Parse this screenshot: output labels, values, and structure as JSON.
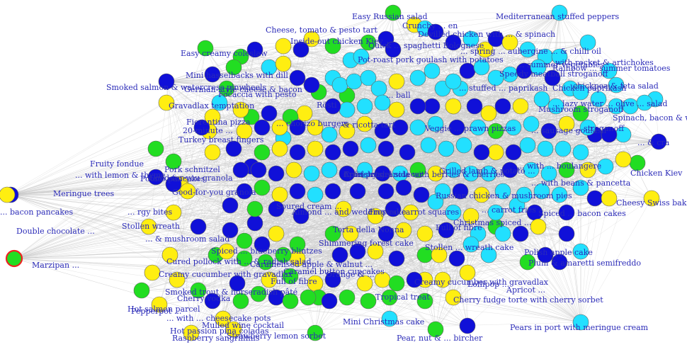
{
  "palette": {
    "dark_blue": "#1010d8",
    "cyan": "#22e0ff",
    "green": "#22dd22",
    "yellow": "#ffee11",
    "highlight_stroke": "#ee2222",
    "label": "#2b2bb8",
    "edge": "#bdbdbd"
  },
  "nodes": [
    {
      "label": "Easy Russian salad",
      "color": "green"
    },
    {
      "label": "Mediterranean stuffed peppers",
      "color": "cyan"
    },
    {
      "label": "Cheese, tomato & pesto tart",
      "color": "yellow"
    },
    {
      "label": "Crunchy ...",
      "color": "yellow"
    },
    {
      "label": "Inside-out chicken Kiev",
      "color": "dark_blue"
    },
    {
      "label": "Easy creamy coleslaw",
      "color": "green"
    },
    {
      "label": "Pot-roast pork goulash with potatoes",
      "color": "cyan"
    },
    {
      "label": "Mini hasselbacks with dill",
      "color": "dark_blue"
    },
    {
      "label": "Speedy meatball stroganoff",
      "color": "cyan"
    },
    {
      "label": "Smoked salmon & watercress pinwheels",
      "color": "dark_blue"
    },
    {
      "label": "German-style cheese & bacon",
      "color": "green"
    },
    {
      "label": "Focaccia with pesto",
      "color": "green"
    },
    {
      "label": "Gravadlax temptation",
      "color": "yellow"
    },
    {
      "label": "Rösti",
      "color": "green"
    },
    {
      "label": "Chorizo burgers",
      "color": "yellow"
    },
    {
      "label": "Chicken Kiev",
      "color": "green"
    },
    {
      "label": "Spinach, bacon & ...",
      "color": "cyan"
    },
    {
      "label": "Fiorentina pizza",
      "color": "yellow"
    },
    {
      "label": "20-minute ...",
      "color": "dark_blue"
    },
    {
      "label": "Turkey breast fingers",
      "color": "yellow"
    },
    {
      "label": "Fruity fondue",
      "color": "green"
    },
    {
      "label": "Pork schnitzel",
      "color": "green"
    },
    {
      "label": "Potato pancakes",
      "color": "yellow"
    },
    {
      "label": "Good-for-you granola",
      "color": "dark_blue"
    },
    {
      "label": "Meringue trees",
      "color": "dark_blue"
    },
    {
      "label": "Scandi smoked ...",
      "color": "dark_blue"
    },
    {
      "label": "Russian chicken & mushroom pies",
      "color": "dark_blue"
    },
    {
      "label": "Grilled lamb & potato ...",
      "color": "yellow"
    },
    {
      "label": "Cheesy Swiss bake",
      "color": "cyan"
    },
    {
      "label": "Spiced ... bacon cakes",
      "color": "cyan"
    },
    {
      "label": "Soured cream ...",
      "color": "yellow"
    },
    {
      "label": "Almond ... wedding cake",
      "color": "yellow"
    },
    {
      "label": "Torta della Nonna",
      "color": "dark_blue"
    },
    {
      "label": "Frosted carrot squares",
      "color": "yellow"
    },
    {
      "label": "Stollen wreath",
      "color": "dark_blue"
    },
    {
      "label": "Double chocolate ...",
      "color": "dark_blue"
    },
    {
      "label": "Full of fibre",
      "color": "dark_blue"
    },
    {
      "label": "Full of fibre",
      "color": "green",
      "highlight": true
    },
    {
      "label": "Shimmering forest cake",
      "color": "yellow"
    },
    {
      "label": "Christmas spiced ...",
      "color": "cyan"
    },
    {
      "label": "Cured pollock with ... & radish salad",
      "color": "cyan"
    },
    {
      "label": "Creamy cucumber with gravadlax",
      "color": "cyan"
    },
    {
      "label": "Caramelised apple & walnut ...",
      "color": "yellow"
    },
    {
      "label": "Caramel button cupcakes",
      "color": "green"
    },
    {
      "label": "Marzipan ...",
      "color": "yellow"
    },
    {
      "label": "Plum & amaretti semifreddo",
      "color": "yellow"
    },
    {
      "label": "Orange & ...",
      "color": "yellow"
    },
    {
      "label": "Lollipop ...",
      "color": "yellow"
    },
    {
      "label": "Hot salmon parcel",
      "color": "yellow"
    },
    {
      "label": "Smoked trout & horseradish pâté",
      "color": "dark_blue"
    },
    {
      "label": "Cherry vodka",
      "color": "green"
    },
    {
      "label": "Tropical treat",
      "color": "green"
    },
    {
      "label": "Mini Christmas cake",
      "color": "yellow"
    },
    {
      "label": "Cherry fudge torte with cherry sorbet",
      "color": "green"
    },
    {
      "label": "Pears in port with meringue cream",
      "color": "yellow"
    },
    {
      "label": "Hot passion pina coladas",
      "color": "yellow"
    },
    {
      "label": "Pear, nut & ... bircher",
      "color": "yellow"
    },
    {
      "label": "Mulled wine cocktail",
      "color": "green"
    },
    {
      "label": "Strawberry lemon sorbet",
      "color": "cyan"
    },
    {
      "label": "Raspberry sangrillinis",
      "color": "cyan"
    },
    {
      "label": "Crunchy granola with berries & cherries",
      "color": "green"
    },
    {
      "label": "Apfelstrudel sidecar",
      "color": "dark_blue"
    },
    {
      "label": "Fruit pots",
      "color": "yellow"
    },
    {
      "label": "Mushroom stroganoff",
      "color": "cyan"
    },
    {
      "label": "Rainbow ... summer tomatoes",
      "color": "cyan"
    },
    {
      "label": "Chicken paprikash",
      "color": "cyan"
    },
    {
      "label": "Cauliflower cheese",
      "color": "cyan"
    },
    {
      "label": "Chickpea & feta salad",
      "color": "cyan"
    },
    {
      "label": "Chicken ... stroganoff",
      "color": "dark_blue"
    },
    {
      "label": "... beans & pancetta",
      "color": "cyan"
    },
    {
      "label": "... carrot fries",
      "color": "yellow"
    },
    {
      "label": "Blueberry blintzes",
      "color": "green"
    },
    {
      "label": "Cheesecake pots",
      "color": "green"
    },
    {
      "label": "Spiced ...",
      "color": "yellow"
    },
    {
      "label": "Polish apple cake",
      "color": "green"
    },
    {
      "label": "Sauerkraut ...",
      "color": "green"
    },
    {
      "label": "... bites",
      "color": "yellow"
    },
    {
      "label": "Veggie ...",
      "color": "cyan"
    },
    {
      "label": "Smoked ... bacon pancakes",
      "color": "dark_blue"
    },
    {
      "label": "... mushroom salad",
      "color": "green"
    },
    {
      "label": "Apricot ...",
      "color": "yellow"
    },
    {
      "label": "... sidecar",
      "color": "green"
    }
  ],
  "labels": [
    {
      "text": "Easy Russian salad"
    },
    {
      "text": "Mediterranean stuffed peppers"
    },
    {
      "text": "Cheese, tomato & pesto tart"
    },
    {
      "text": "Crunchy ... en"
    },
    {
      "text": "Inside-out chicken Kiev"
    },
    {
      "text": "Devilled chicken with ... & spinach"
    },
    {
      "text": "Quick ... spaghetti Bolognese"
    },
    {
      "text": "... spring ... aubergine ... & chilli oil"
    },
    {
      "text": "... with rocket & artichokes"
    },
    {
      "text": "Easy creamy coleslaw"
    },
    {
      "text": "Pot-roast pork goulash with potatoes"
    },
    {
      "text": "... summer vegetables"
    },
    {
      "text": "Rainbow ... summer tomatoes"
    },
    {
      "text": "Mini hasselbacks with dill"
    },
    {
      "text": "Speedy meatball stroganoff"
    },
    {
      "text": "Chicken paprikash"
    },
    {
      "text": "Smoked salmon & watercress pinwheels"
    },
    {
      "text": "German-style cheese & bacon"
    },
    {
      "text": "Focaccia with pesto"
    },
    {
      "text": "... ball"
    },
    {
      "text": "... stuffed ... paprikash"
    },
    {
      "text": "... chickpea & feta salad"
    },
    {
      "text": "Gravadlax temptation"
    },
    {
      "text": "Rösti"
    },
    {
      "text": "Mushroom stroganoff"
    },
    {
      "text": "... lazy water ... olive ... salad"
    },
    {
      "text": "Spinach, bacon & w"
    },
    {
      "text": "Fiorentina pizza"
    },
    {
      "text": "20-minute ..."
    },
    {
      "text": "Turkey breast fingers"
    },
    {
      "text": "... chorizo burgers"
    },
    {
      "text": "... & ricotta tart"
    },
    {
      "text": "Veggie ... prawn pizzas"
    },
    {
      "text": "... sausage goulash"
    },
    {
      "text": "... stroganoff"
    },
    {
      "text": "... & cra"
    },
    {
      "text": "Fruity fondue"
    },
    {
      "text": "Pork schnitzel"
    },
    {
      "text": "Potato pancakes"
    },
    {
      "text": "Grilled lamb & potato ..."
    },
    {
      "text": "... with ... boulangère"
    },
    {
      "text": "Chicken Kiev"
    },
    {
      "text": "... with beans & pancetta"
    },
    {
      "text": "... with lemon & thyme"
    },
    {
      "text": "Good-for-you granola"
    },
    {
      "text": "Meringue trees"
    },
    {
      "text": "Good-for-you granola"
    },
    {
      "text": "Soured cream ..."
    },
    {
      "text": "Russian chicken & mushroom pies"
    },
    {
      "text": "Cheesy Swiss bake"
    },
    {
      "text": "... carrot fries"
    },
    {
      "text": "Spiced ... bacon cakes"
    },
    {
      "text": "... bacon pancakes"
    },
    {
      "text": "... rgy bites"
    },
    {
      "text": "Almond ... and wedding cake"
    },
    {
      "text": "Torta della Nonna"
    },
    {
      "text": "Frosted carrot squares"
    },
    {
      "text": "Stollen wreath"
    },
    {
      "text": "Double chocolate ..."
    },
    {
      "text": "Full of fibre"
    },
    {
      "text": "Christmas spiced ..."
    },
    {
      "text": "... & mushroom salad"
    },
    {
      "text": "Shimmering forest cake"
    },
    {
      "text": "Spiced ... blueberry blintzes"
    },
    {
      "text": "Stollen ... wreath cake"
    },
    {
      "text": "Cured pollock with ... & radish salad"
    },
    {
      "text": "Caramelised apple & walnut ..."
    },
    {
      "text": "Caramel button cupcakes"
    },
    {
      "text": "Polish apple cake"
    },
    {
      "text": "Marzipan ..."
    },
    {
      "text": "Creamy cucumber with gravadlax"
    },
    {
      "text": "Full of fibre"
    },
    {
      "text": "Plum & amaretti semifreddo"
    },
    {
      "text": "Orange & ..."
    },
    {
      "text": "Creamy cucumber with gravadlax"
    },
    {
      "text": "Lollipop ..."
    },
    {
      "text": "Apricot ..."
    },
    {
      "text": "Hot salmon parcel"
    },
    {
      "text": "Smoked trout & horseradish pâté"
    },
    {
      "text": "Cherry vodka"
    },
    {
      "text": "Tropical treat"
    },
    {
      "text": "Cherry fudge torte with cherry sorbet"
    },
    {
      "text": "Pepperpot ..."
    },
    {
      "text": "... with ... cheesecake pots"
    },
    {
      "text": "Mulled wine cocktail"
    },
    {
      "text": "Mini Christmas cake"
    },
    {
      "text": "Hot passion pina coladas"
    },
    {
      "text": "Pears in port with meringue cream"
    },
    {
      "text": "Strawberry lemon sorbet"
    },
    {
      "text": "Pear, nut & ... bircher"
    },
    {
      "text": "Raspberry sangrillinis"
    },
    {
      "text": "Crunchy granola with berries & cherries"
    },
    {
      "text": "Apfelstrudel sidecar"
    },
    {
      "text": "Fruit pots"
    }
  ]
}
